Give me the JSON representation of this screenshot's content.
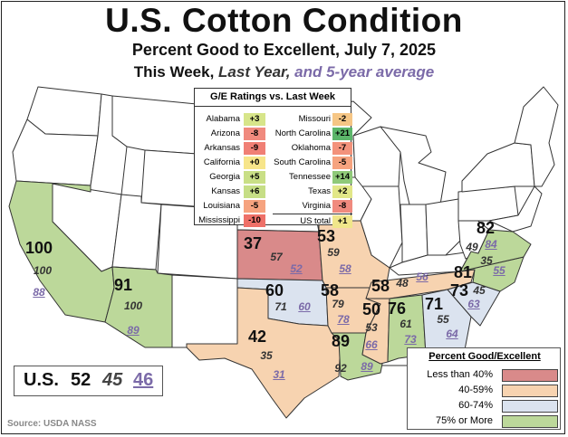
{
  "header": {
    "title": "U.S. Cotton Condition",
    "subtitle": "Percent Good to Excellent, July 7, 2025",
    "series_this_week": "This Week,",
    "series_last_year": "Last Year,",
    "series_five_year": "and 5-year average"
  },
  "colors": {
    "less_than_40": "#d98a8a",
    "range_40_59": "#f7d3b0",
    "range_60_74": "#dbe3ef",
    "range_75_plus": "#bcd89a",
    "other_state": "#ffffff",
    "five_year_text": "#7b6aa8"
  },
  "ge_table": {
    "title": "G/E Ratings vs. Last Week",
    "left": [
      {
        "state": "Alabama",
        "change": "+3",
        "color": "#d7e58a"
      },
      {
        "state": "Arizona",
        "change": "-8",
        "color": "#f08a7e"
      },
      {
        "state": "Arkansas",
        "change": "-9",
        "color": "#f07f75"
      },
      {
        "state": "California",
        "change": "+0",
        "color": "#f7e58a"
      },
      {
        "state": "Georgia",
        "change": "+5",
        "color": "#c9df86"
      },
      {
        "state": "Kansas",
        "change": "+6",
        "color": "#c6de86"
      },
      {
        "state": "Louisiana",
        "change": "-5",
        "color": "#f6a37f"
      },
      {
        "state": "Mississippi",
        "change": "-10",
        "color": "#ee7068"
      }
    ],
    "right": [
      {
        "state": "Missouri",
        "change": "-2",
        "color": "#f6c685"
      },
      {
        "state": "North Carolina",
        "change": "+21",
        "color": "#5cb66a"
      },
      {
        "state": "Oklahoma",
        "change": "-7",
        "color": "#f3927b"
      },
      {
        "state": "South Carolina",
        "change": "-5",
        "color": "#f6a37f"
      },
      {
        "state": "Tennessee",
        "change": "+14",
        "color": "#8fc979"
      },
      {
        "state": "Texas",
        "change": "+2",
        "color": "#e2e788"
      },
      {
        "state": "Virginia",
        "change": "-8",
        "color": "#f08a7e"
      },
      {
        "state": "US total",
        "change": "+1",
        "color": "#f0e68a"
      }
    ]
  },
  "states": [
    {
      "name": "California",
      "this_week": "100",
      "last_year": "100",
      "five_year": "88"
    },
    {
      "name": "Arizona",
      "this_week": "91",
      "last_year": "100",
      "five_year": "89"
    },
    {
      "name": "Kansas",
      "this_week": "37",
      "last_year": "57",
      "five_year": "52"
    },
    {
      "name": "Missouri",
      "this_week": "53",
      "last_year": "59",
      "five_year": "58"
    },
    {
      "name": "Oklahoma",
      "this_week": "60",
      "last_year": "71",
      "five_year": "60"
    },
    {
      "name": "Texas",
      "this_week": "42",
      "last_year": "35",
      "five_year": "31"
    },
    {
      "name": "Arkansas",
      "this_week": "58",
      "last_year": "79",
      "five_year": "78"
    },
    {
      "name": "Tennessee",
      "this_week": "58",
      "last_year": "48",
      "five_year": "56"
    },
    {
      "name": "Mississippi",
      "this_week": "50",
      "last_year": "53",
      "five_year": "66"
    },
    {
      "name": "Alabama",
      "this_week": "76",
      "last_year": "61",
      "five_year": "73"
    },
    {
      "name": "Georgia",
      "this_week": "71",
      "last_year": "55",
      "five_year": "64"
    },
    {
      "name": "South Carolina",
      "this_week": "73",
      "last_year": "45",
      "five_year": "63"
    },
    {
      "name": "North Carolina",
      "this_week": "81",
      "last_year": "35",
      "five_year": "55"
    },
    {
      "name": "Virginia",
      "this_week": "82",
      "last_year": "49",
      "five_year": "84"
    },
    {
      "name": "Louisiana",
      "this_week": "89",
      "last_year": "92",
      "five_year": "89"
    }
  ],
  "us_summary": {
    "label": "U.S.",
    "this_week": "52",
    "last_year": "45",
    "five_year": "46"
  },
  "legend": {
    "title": "Percent Good/Excellent",
    "items": [
      {
        "label": "Less than 40%",
        "color": "#d98a8a"
      },
      {
        "label": "40-59%",
        "color": "#f7d3b0"
      },
      {
        "label": "60-74%",
        "color": "#dbe3ef"
      },
      {
        "label": "75% or More",
        "color": "#bcd89a"
      }
    ]
  },
  "source": "Source: USDA NASS"
}
